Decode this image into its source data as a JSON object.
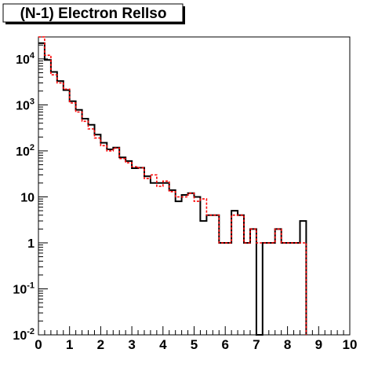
{
  "chart_data": {
    "type": "histogram",
    "title": "(N-1) Electron RelIso",
    "xlim": [
      0,
      10
    ],
    "ylim": [
      0.01,
      30000
    ],
    "ylog": true,
    "grid": false,
    "bin_width": 0.2,
    "x_ticks": [
      {
        "value": 0,
        "label": "0"
      },
      {
        "value": 1,
        "label": "1"
      },
      {
        "value": 2,
        "label": "2"
      },
      {
        "value": 3,
        "label": "3"
      },
      {
        "value": 4,
        "label": "4"
      },
      {
        "value": 5,
        "label": "5"
      },
      {
        "value": 6,
        "label": "6"
      },
      {
        "value": 7,
        "label": "7"
      },
      {
        "value": 8,
        "label": "8"
      },
      {
        "value": 9,
        "label": "9"
      },
      {
        "value": 10,
        "label": "10"
      }
    ],
    "y_ticks": [
      {
        "value": 0.01,
        "base": "10",
        "exp": "-2"
      },
      {
        "value": 0.1,
        "base": "10",
        "exp": "-1"
      },
      {
        "value": 1,
        "base": "1",
        "exp": ""
      },
      {
        "value": 10,
        "base": "10",
        "exp": ""
      },
      {
        "value": 100,
        "base": "10",
        "exp": "2"
      },
      {
        "value": 1000,
        "base": "10",
        "exp": "3"
      },
      {
        "value": 10000,
        "base": "10",
        "exp": "4"
      }
    ],
    "series": [
      {
        "style": "solid",
        "color": "#000000",
        "values": [
          22000,
          9500,
          5200,
          3300,
          2100,
          1200,
          780,
          500,
          370,
          225,
          150,
          108,
          118,
          72,
          60,
          42,
          43,
          28,
          20,
          20,
          20,
          14,
          8,
          11,
          12,
          10,
          3,
          4,
          4,
          1,
          1,
          5,
          4,
          1,
          2,
          0,
          1,
          1,
          2,
          1,
          1,
          1,
          3
        ]
      },
      {
        "style": "dashed",
        "color": "#ff0000",
        "values": [
          30000,
          12000,
          4500,
          3000,
          2200,
          1100,
          700,
          440,
          300,
          190,
          130,
          100,
          115,
          68,
          55,
          45,
          43,
          25,
          30,
          17,
          22,
          13,
          10,
          10,
          12,
          8,
          9,
          4,
          4,
          1,
          1,
          4,
          4,
          1,
          2,
          1,
          1,
          1,
          2,
          1,
          1,
          1,
          1
        ]
      }
    ]
  }
}
